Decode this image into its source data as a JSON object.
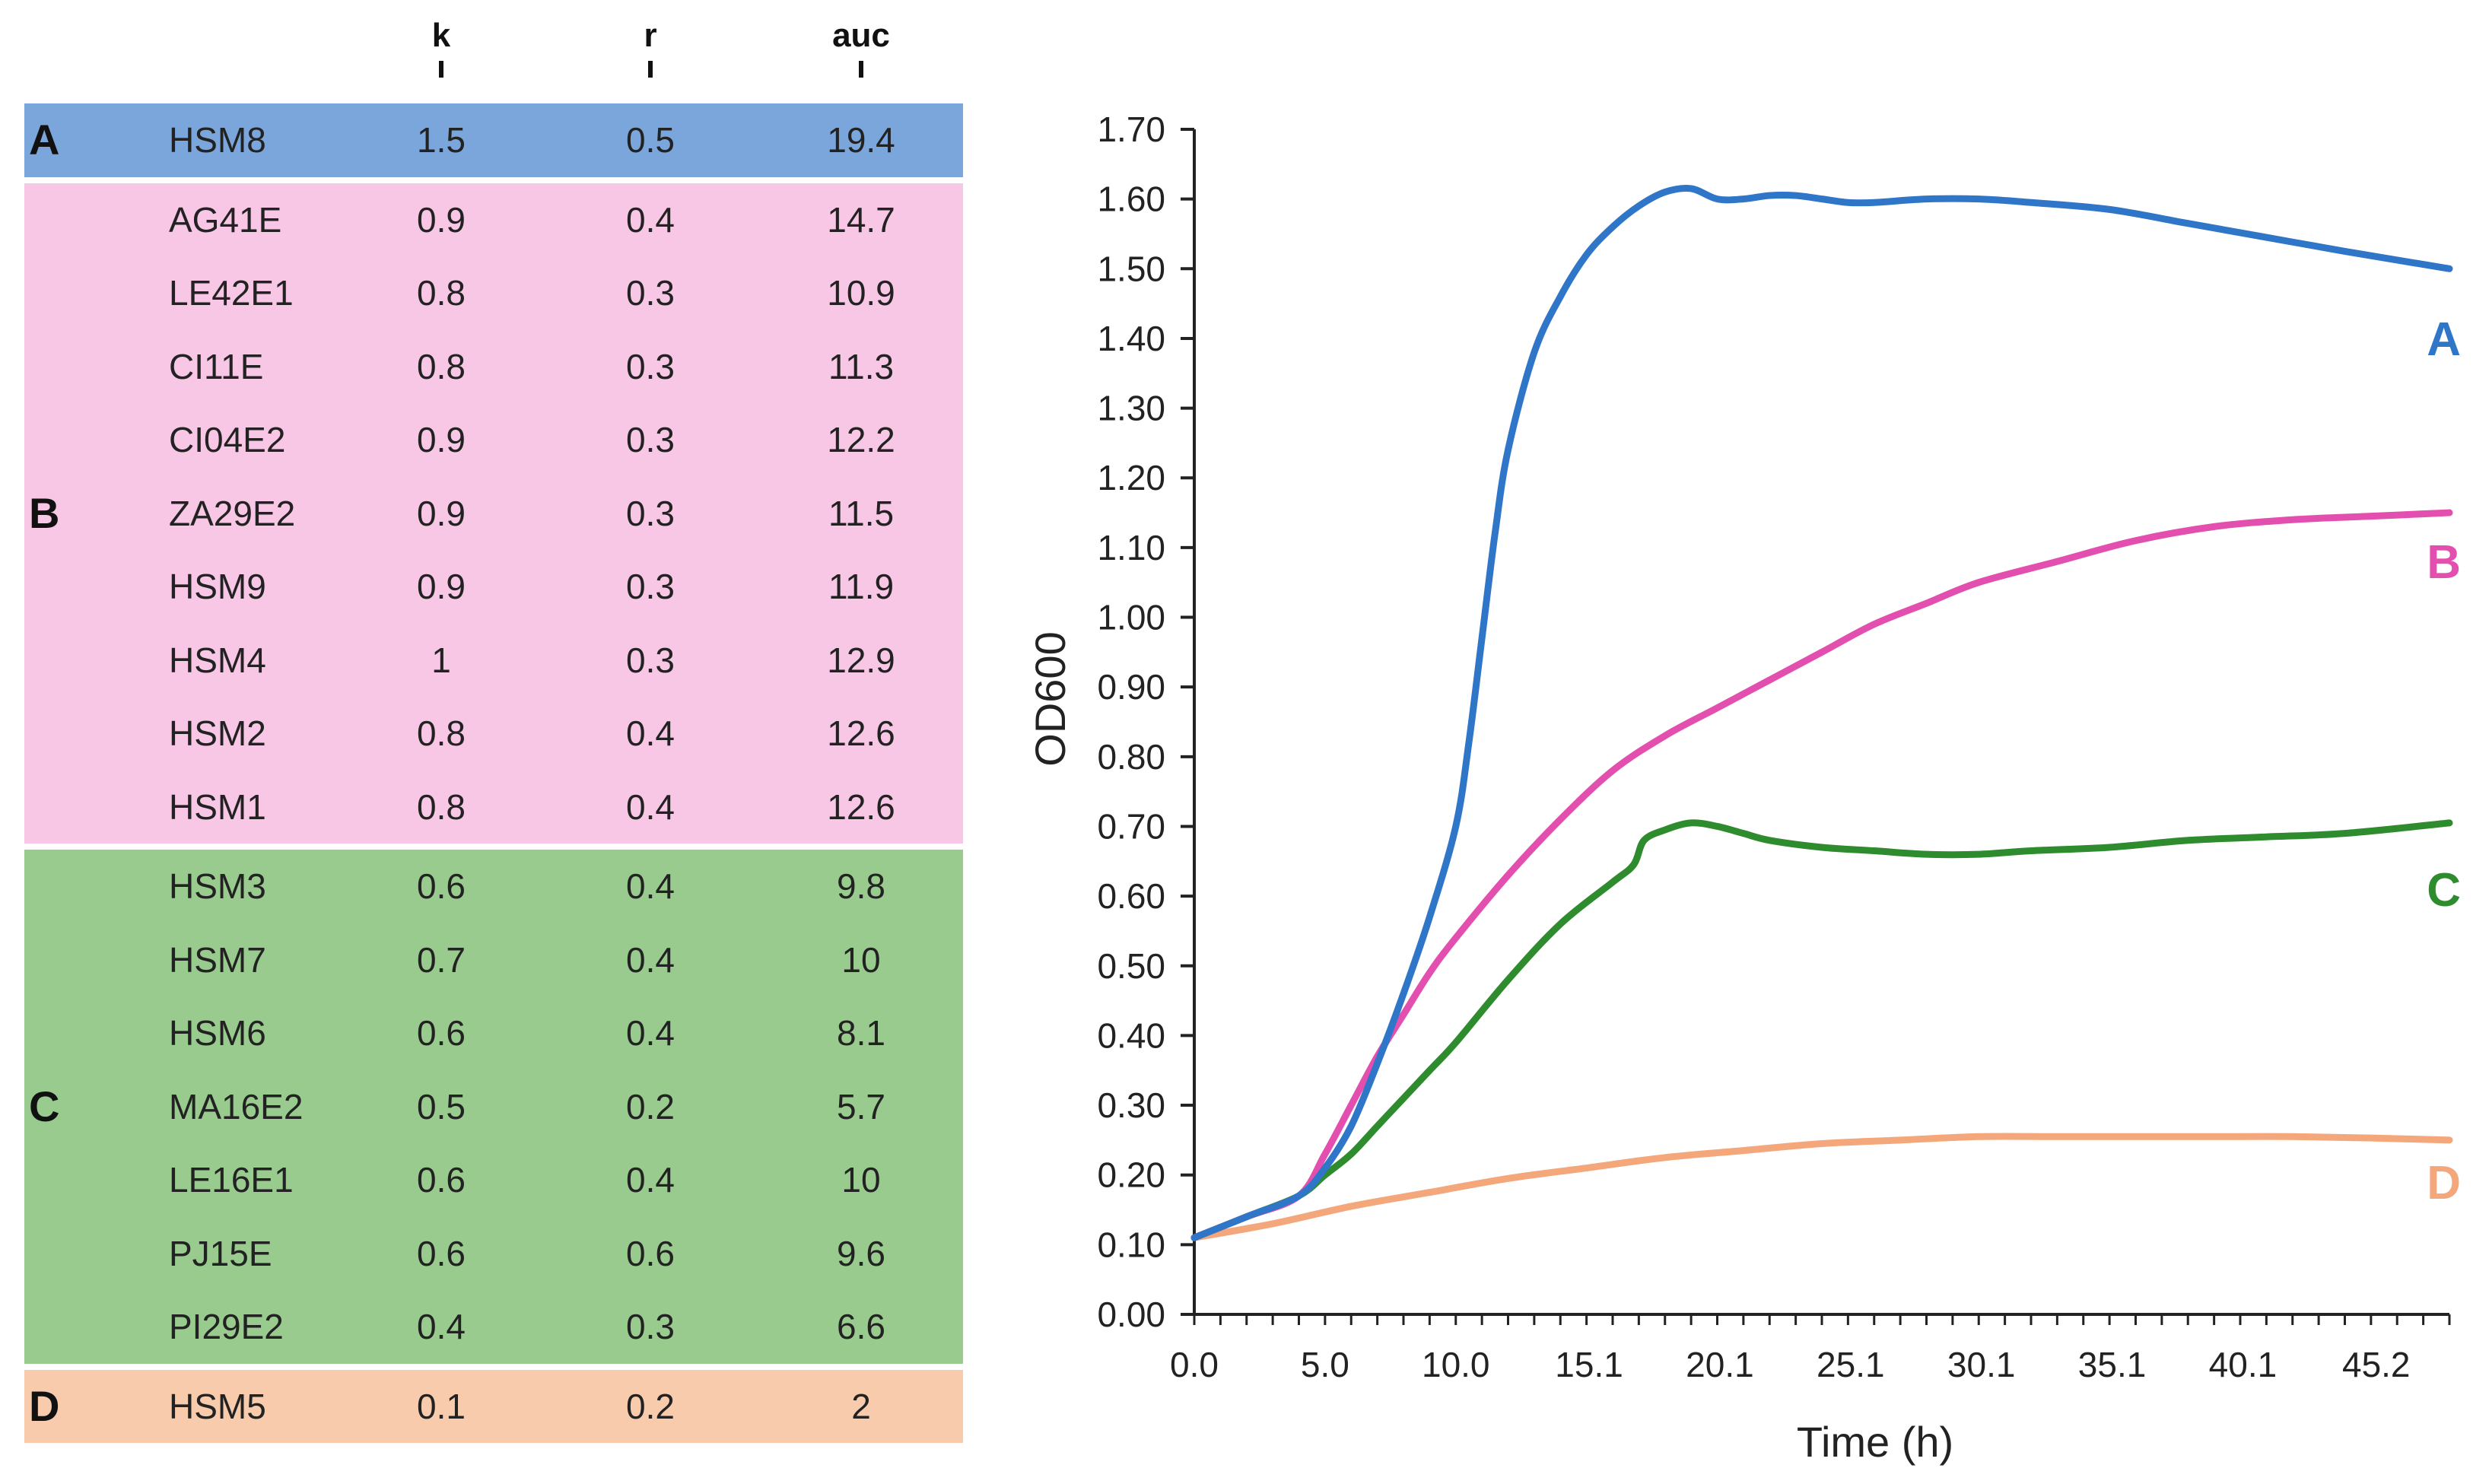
{
  "table": {
    "headers": {
      "k": "k",
      "r": "r",
      "auc": "auc"
    },
    "groups": [
      {
        "letter": "A",
        "color": "#7AA6DB",
        "rows": [
          {
            "name": "HSM8",
            "k": "1.5",
            "r": "0.5",
            "auc": "19.4"
          }
        ]
      },
      {
        "letter": "B",
        "color": "#F9C7E6",
        "rows": [
          {
            "name": "AG41E",
            "k": "0.9",
            "r": "0.4",
            "auc": "14.7"
          },
          {
            "name": "LE42E1",
            "k": "0.8",
            "r": "0.3",
            "auc": "10.9"
          },
          {
            "name": "CI11E",
            "k": "0.8",
            "r": "0.3",
            "auc": "11.3"
          },
          {
            "name": "CI04E2",
            "k": "0.9",
            "r": "0.3",
            "auc": "12.2"
          },
          {
            "name": "ZA29E2",
            "k": "0.9",
            "r": "0.3",
            "auc": "11.5"
          },
          {
            "name": "HSM9",
            "k": "0.9",
            "r": "0.3",
            "auc": "11.9"
          },
          {
            "name": "HSM4",
            "k": "1",
            "r": "0.3",
            "auc": "12.9"
          },
          {
            "name": "HSM2",
            "k": "0.8",
            "r": "0.4",
            "auc": "12.6"
          },
          {
            "name": "HSM1",
            "k": "0.8",
            "r": "0.4",
            "auc": "12.6"
          }
        ]
      },
      {
        "letter": "C",
        "color": "#98CB8D",
        "rows": [
          {
            "name": "HSM3",
            "k": "0.6",
            "r": "0.4",
            "auc": "9.8"
          },
          {
            "name": "HSM7",
            "k": "0.7",
            "r": "0.4",
            "auc": "10"
          },
          {
            "name": "HSM6",
            "k": "0.6",
            "r": "0.4",
            "auc": "8.1"
          },
          {
            "name": "MA16E2",
            "k": "0.5",
            "r": "0.2",
            "auc": "5.7"
          },
          {
            "name": "LE16E1",
            "k": "0.6",
            "r": "0.4",
            "auc": "10"
          },
          {
            "name": "PJ15E",
            "k": "0.6",
            "r": "0.6",
            "auc": "9.6"
          },
          {
            "name": "PI29E2",
            "k": "0.4",
            "r": "0.3",
            "auc": "6.6"
          }
        ]
      },
      {
        "letter": "D",
        "color": "#F8CBAD",
        "rows": [
          {
            "name": "HSM5",
            "k": "0.1",
            "r": "0.2",
            "auc": "2"
          }
        ]
      }
    ]
  },
  "chart_data": {
    "type": "line",
    "title": "",
    "xlabel": "Time (h)",
    "ylabel": "OD600",
    "xlim": [
      0,
      48
    ],
    "ylim": [
      0,
      1.7
    ],
    "grid": false,
    "x_tick_labels": [
      "0.0",
      "5.0",
      "10.0",
      "15.1",
      "20.1",
      "25.1",
      "30.1",
      "35.1",
      "40.1",
      "45.2"
    ],
    "x_tick_values": [
      0,
      5,
      10,
      15.1,
      20.1,
      25.1,
      30.1,
      35.1,
      40.1,
      45.2
    ],
    "y_tick_labels": [
      "0.00",
      "0.10",
      "0.20",
      "0.30",
      "0.40",
      "0.50",
      "0.60",
      "0.70",
      "0.80",
      "0.90",
      "1.00",
      "1.10",
      "1.20",
      "1.30",
      "1.40",
      "1.50",
      "1.60",
      "1.70"
    ],
    "series": [
      {
        "name": "A",
        "color": "#2F76C8",
        "x": [
          0,
          2,
          4,
          5,
          6,
          7,
          8,
          9,
          10,
          10.5,
          11,
          11.5,
          12,
          13,
          14,
          15,
          16,
          17,
          18,
          19,
          20,
          21,
          22,
          23,
          24,
          25,
          26,
          28,
          30,
          32,
          35,
          38,
          41,
          44,
          48
        ],
        "y": [
          0.11,
          0.14,
          0.17,
          0.21,
          0.27,
          0.36,
          0.46,
          0.57,
          0.7,
          0.82,
          0.97,
          1.12,
          1.24,
          1.38,
          1.46,
          1.52,
          1.56,
          1.59,
          1.61,
          1.615,
          1.6,
          1.6,
          1.605,
          1.605,
          1.6,
          1.595,
          1.595,
          1.6,
          1.6,
          1.595,
          1.585,
          1.565,
          1.545,
          1.525,
          1.5
        ]
      },
      {
        "name": "B",
        "color": "#E34FAE",
        "x": [
          0,
          2,
          4,
          5,
          6,
          7,
          8,
          9,
          10,
          12,
          14,
          16,
          18,
          20,
          22,
          24,
          26,
          28,
          30,
          33,
          36,
          39,
          42,
          45,
          48
        ],
        "y": [
          0.11,
          0.14,
          0.17,
          0.23,
          0.3,
          0.37,
          0.43,
          0.49,
          0.54,
          0.63,
          0.71,
          0.78,
          0.83,
          0.87,
          0.91,
          0.95,
          0.99,
          1.02,
          1.05,
          1.08,
          1.11,
          1.13,
          1.14,
          1.145,
          1.15
        ]
      },
      {
        "name": "C",
        "color": "#2E8B2E",
        "x": [
          0,
          2,
          4,
          5,
          6,
          7,
          8,
          9,
          10,
          12,
          14,
          16,
          16.8,
          17.2,
          18,
          19,
          20,
          21,
          22,
          24,
          26,
          28,
          30,
          32,
          35,
          38,
          41,
          44,
          48
        ],
        "y": [
          0.11,
          0.14,
          0.17,
          0.2,
          0.23,
          0.27,
          0.31,
          0.35,
          0.39,
          0.48,
          0.56,
          0.62,
          0.645,
          0.68,
          0.695,
          0.705,
          0.7,
          0.69,
          0.68,
          0.67,
          0.665,
          0.66,
          0.66,
          0.665,
          0.67,
          0.68,
          0.685,
          0.69,
          0.705
        ]
      },
      {
        "name": "D",
        "color": "#F4A77A",
        "x": [
          0,
          3,
          6,
          9,
          12,
          15,
          18,
          21,
          24,
          27,
          30,
          33,
          36,
          39,
          42,
          45,
          48
        ],
        "y": [
          0.11,
          0.13,
          0.155,
          0.175,
          0.195,
          0.21,
          0.225,
          0.235,
          0.245,
          0.25,
          0.255,
          0.255,
          0.255,
          0.255,
          0.255,
          0.253,
          0.25
        ]
      }
    ],
    "labels": [
      {
        "text": "A",
        "color": "#2F76C8",
        "series": "A"
      },
      {
        "text": "B",
        "color": "#E34FAE",
        "series": "B"
      },
      {
        "text": "C",
        "color": "#2E8B2E",
        "series": "C"
      },
      {
        "text": "D",
        "color": "#F4A77A",
        "series": "D"
      }
    ]
  }
}
